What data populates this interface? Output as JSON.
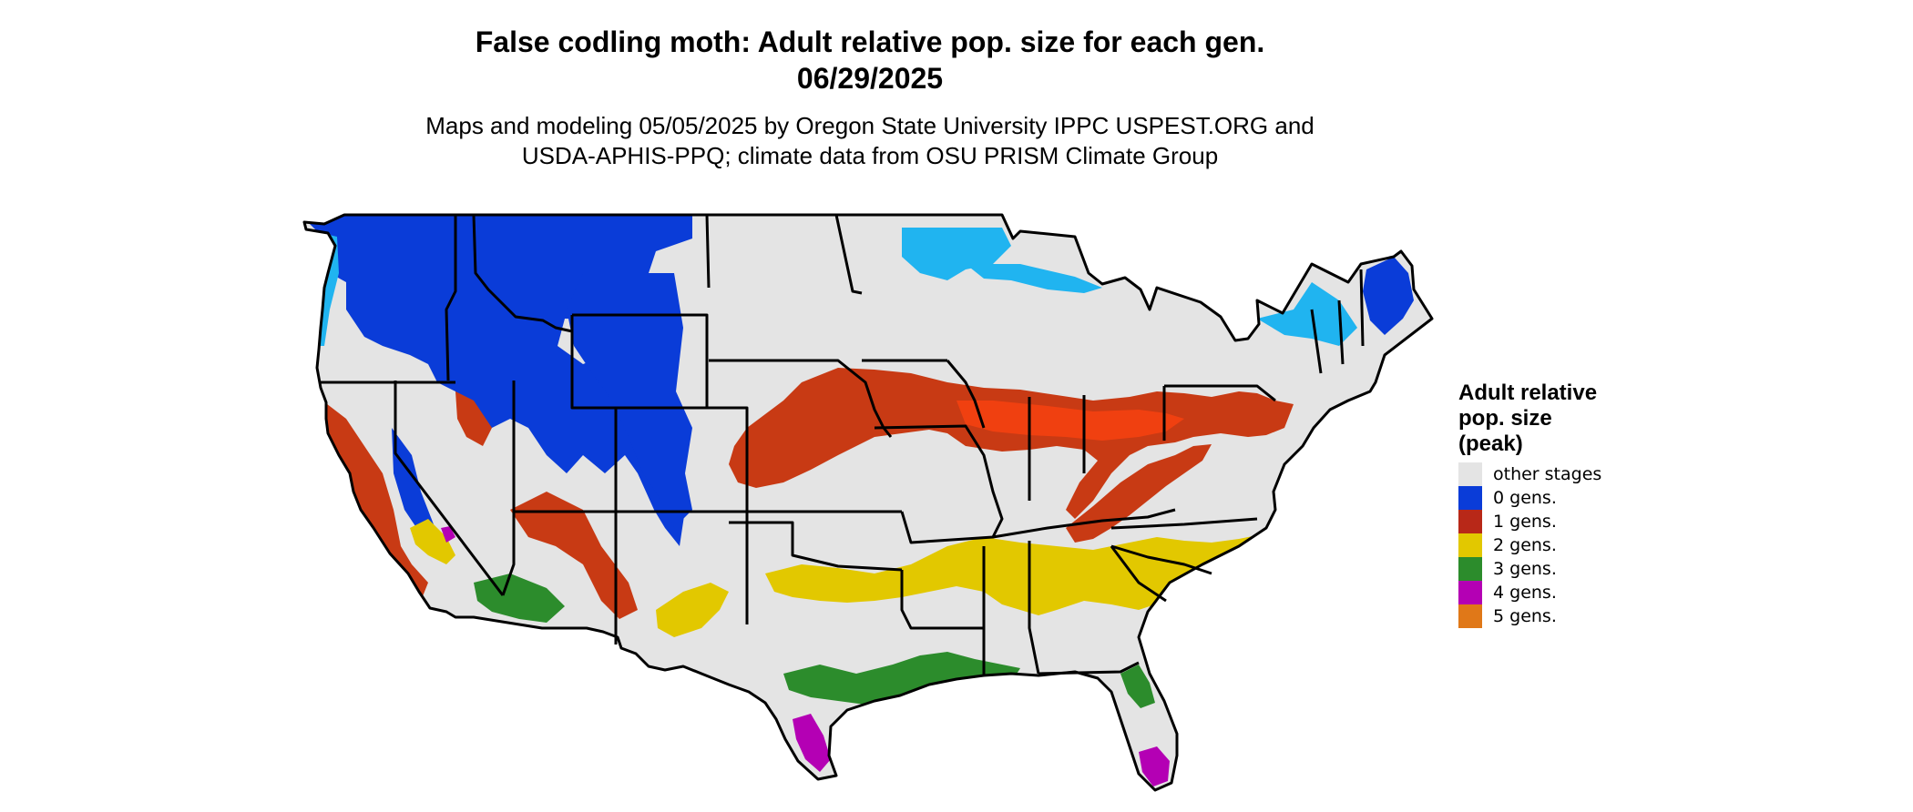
{
  "title": {
    "line1": "False codling moth: Adult relative pop. size for each gen.",
    "line2": "06/29/2025"
  },
  "subtitle": {
    "line1": "Maps and modeling 05/05/2025 by Oregon State University IPPC USPEST.ORG and",
    "line2": "USDA-APHIS-PPQ; climate data from OSU PRISM Climate Group"
  },
  "legend": {
    "title_lines": [
      "Adult relative",
      "pop. size",
      "(peak)"
    ],
    "items": [
      {
        "label": "other stages",
        "color": "#e4e4e4"
      },
      {
        "label": "0 gens.",
        "color": "#0a3cd8"
      },
      {
        "label": "1 gens.",
        "color": "#b82818"
      },
      {
        "label": "2 gens.",
        "color": "#e2c800"
      },
      {
        "label": "3 gens.",
        "color": "#2c8c2c"
      },
      {
        "label": "4 gens.",
        "color": "#b400b4"
      },
      {
        "label": "5 gens.",
        "color": "#e07818"
      }
    ]
  },
  "map": {
    "land_color": "#e4e4e4",
    "border_color": "#000000",
    "light_blue": "#20b4f0",
    "light_red": "#f04010",
    "light_green": "#5cd05c",
    "light_yellow": "#f4ec20"
  }
}
